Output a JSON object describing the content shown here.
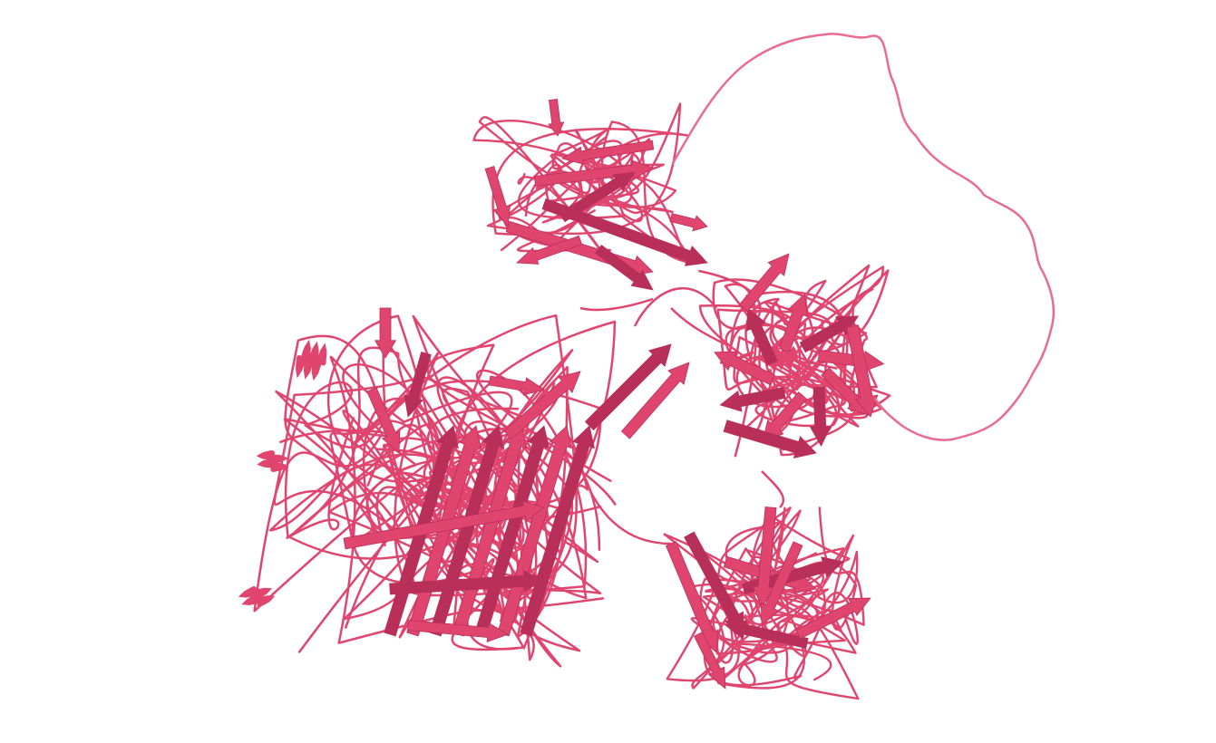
{
  "scene": {
    "background": "#ffffff",
    "ribbon_color": "#e0456f",
    "ribbon_dark": "#b8305a",
    "ribbon_light": "#ef86a4",
    "loop_color": "#e86c90"
  }
}
